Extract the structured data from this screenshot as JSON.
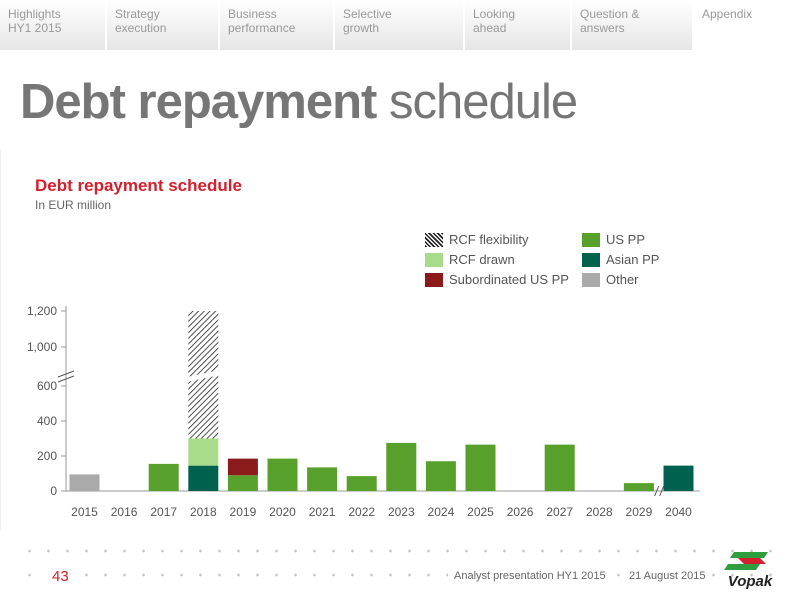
{
  "tabs": [
    {
      "line1": "Highlights",
      "line2": "HY1 2015"
    },
    {
      "line1": "Strategy",
      "line2": "execution"
    },
    {
      "line1": "Business",
      "line2": "performance"
    },
    {
      "line1": "Selective",
      "line2": "growth"
    },
    {
      "line1": "Looking",
      "line2": "ahead"
    },
    {
      "line1": "Question &",
      "line2": "answers"
    },
    {
      "line1": "Appendix",
      "line2": ""
    }
  ],
  "page_title_bold": "Debt repayment",
  "page_title_regular": " schedule",
  "chart_data": {
    "type": "bar",
    "stacked": true,
    "title": "Debt repayment schedule",
    "subtitle": "In EUR million",
    "categories": [
      "2015",
      "2016",
      "2017",
      "2018",
      "2019",
      "2020",
      "2021",
      "2022",
      "2023",
      "2024",
      "2025",
      "2026",
      "2027",
      "2028",
      "2029",
      "2040"
    ],
    "series": [
      {
        "name": "US PP",
        "color": "#57a02b",
        "values": [
          0,
          0,
          155,
          0,
          90,
          185,
          135,
          85,
          275,
          170,
          265,
          0,
          265,
          0,
          45,
          0
        ]
      },
      {
        "name": "Asian PP",
        "color": "#00624e",
        "values": [
          0,
          0,
          0,
          145,
          0,
          0,
          0,
          0,
          0,
          0,
          0,
          0,
          0,
          0,
          0,
          145
        ]
      },
      {
        "name": "RCF drawn",
        "color": "#a8dc8a",
        "values": [
          0,
          0,
          0,
          155,
          0,
          0,
          0,
          0,
          0,
          0,
          0,
          0,
          0,
          0,
          0,
          0
        ]
      },
      {
        "name": "Subordinated US PP",
        "color": "#8b1a1a",
        "values": [
          0,
          0,
          0,
          0,
          95,
          0,
          0,
          0,
          0,
          0,
          0,
          0,
          0,
          0,
          0,
          0
        ]
      },
      {
        "name": "Other",
        "color": "#aaaaaa",
        "values": [
          95,
          0,
          0,
          0,
          0,
          0,
          0,
          0,
          0,
          0,
          0,
          0,
          0,
          0,
          0,
          0
        ]
      },
      {
        "name": "RCF flexibility",
        "color": "hatch",
        "values": [
          0,
          0,
          0,
          920,
          0,
          0,
          0,
          0,
          0,
          0,
          0,
          0,
          0,
          0,
          0,
          0
        ]
      }
    ],
    "yticks": [
      "0",
      "200",
      "400",
      "600",
      "1,000",
      "1,200"
    ],
    "y_axis_break": true,
    "x_axis_break_between": [
      "2029",
      "2040"
    ],
    "legend": [
      [
        "RCF flexibility",
        "US PP"
      ],
      [
        "RCF drawn",
        "Asian PP"
      ],
      [
        "Subordinated US PP",
        "Other"
      ]
    ],
    "legend_position": "top-right"
  },
  "footer": {
    "page_number": "43",
    "presentation": "Analyst presentation HY1 2015",
    "date": "21 August 2015"
  },
  "logo_text": "Vopak",
  "colors": {
    "accent": "#d4202e",
    "tab_text": "#999999",
    "title": "#767676"
  }
}
